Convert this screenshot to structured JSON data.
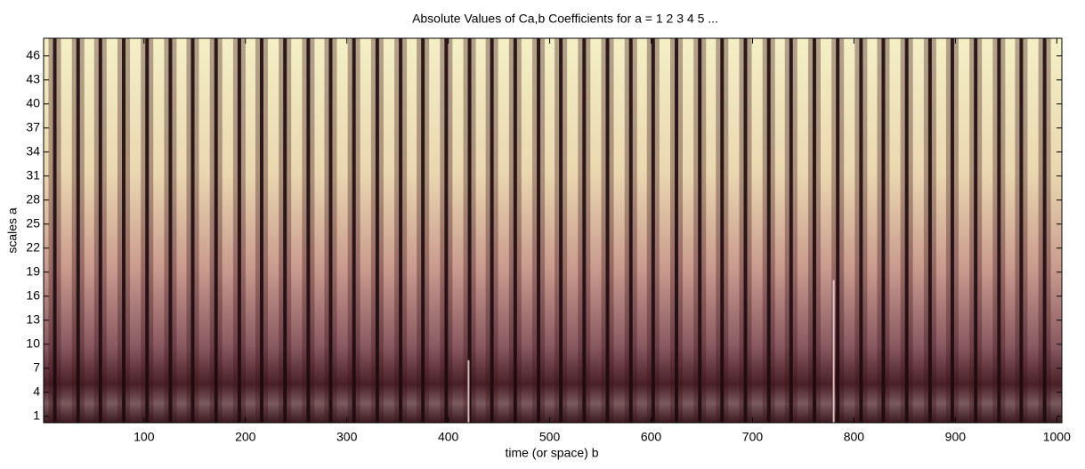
{
  "chart_data": {
    "type": "heatmap",
    "title": "Absolute Values of Ca,b Coefficients for a =  1 2 3 4 5 ...",
    "xlabel": "time (or space) b",
    "ylabel": "scales a",
    "xlim": [
      1,
      1005
    ],
    "ylim": [
      0.2,
      48.2
    ],
    "xticks": [
      100,
      200,
      300,
      400,
      500,
      600,
      700,
      800,
      900,
      1000
    ],
    "yticks": [
      1,
      4,
      7,
      10,
      13,
      16,
      19,
      22,
      25,
      28,
      31,
      34,
      37,
      40,
      43,
      46
    ],
    "stripes": [
      12,
      35,
      57,
      80,
      103,
      126,
      148,
      171,
      194,
      216,
      239,
      262,
      284,
      307,
      330,
      353,
      375,
      398,
      421,
      443,
      466,
      489,
      511,
      534,
      557,
      580,
      602,
      625,
      648,
      670,
      693,
      716,
      738,
      761,
      784,
      807,
      829,
      852,
      875,
      897,
      920,
      943,
      965,
      988
    ],
    "anomalies": [
      {
        "x": 420,
        "top": 8
      },
      {
        "x": 780,
        "top": 18
      }
    ]
  }
}
